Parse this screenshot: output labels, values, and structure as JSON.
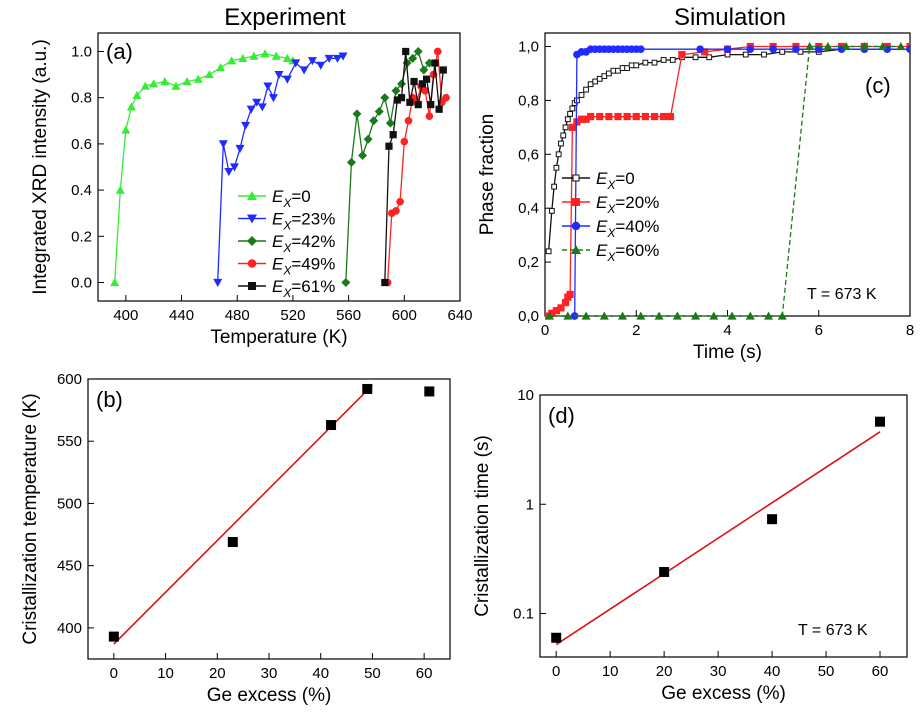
{
  "headers": {
    "left": "Experiment",
    "right": "Simulation"
  },
  "chart_data": [
    {
      "panel_label": "(a)",
      "type": "line",
      "xlabel": "Temperature (K)",
      "ylabel": "Integrated XRD intensity (a.u.)",
      "xlim": [
        380,
        640
      ],
      "ylim": [
        -0.08,
        1.08
      ],
      "xticks": [
        "400",
        "440",
        "480",
        "520",
        "560",
        "600",
        "640"
      ],
      "yticks": [
        "0.0",
        "0.2",
        "0.4",
        "0.6",
        "0.8",
        "1.0"
      ],
      "legend_position": "bottom-center",
      "series": [
        {
          "name": "Ex=0",
          "label_base": "E",
          "label_sub": "X",
          "label_rest": "=0",
          "color": "#33ee33",
          "marker": "triangle-up",
          "x": [
            392,
            396,
            400,
            404,
            408,
            414,
            420,
            428,
            436,
            444,
            452,
            460,
            468,
            476,
            484,
            492,
            500,
            508,
            516,
            520
          ],
          "y": [
            0.0,
            0.4,
            0.66,
            0.76,
            0.81,
            0.85,
            0.86,
            0.87,
            0.85,
            0.87,
            0.88,
            0.9,
            0.93,
            0.96,
            0.97,
            0.98,
            0.99,
            0.98,
            0.97,
            0.96
          ]
        },
        {
          "name": "Ex=23%",
          "label_base": "E",
          "label_sub": "X",
          "label_rest": "=23%",
          "color": "#1f2bff",
          "marker": "triangle-down",
          "x": [
            466,
            470,
            474,
            478,
            482,
            486,
            490,
            494,
            498,
            502,
            506,
            510,
            516,
            522,
            528,
            534,
            540,
            546,
            552,
            556
          ],
          "y": [
            0.0,
            0.6,
            0.48,
            0.5,
            0.58,
            0.68,
            0.75,
            0.78,
            0.76,
            0.85,
            0.8,
            0.9,
            0.88,
            0.95,
            0.92,
            0.96,
            0.94,
            0.97,
            0.97,
            0.98
          ]
        },
        {
          "name": "Ex=42%",
          "label_base": "E",
          "label_sub": "X",
          "label_rest": "=42%",
          "color": "#1a7a1a",
          "marker": "diamond",
          "x": [
            558,
            562,
            566,
            570,
            574,
            578,
            582,
            586,
            590,
            594,
            598,
            602,
            606,
            610,
            614,
            618
          ],
          "y": [
            0.0,
            0.52,
            0.73,
            0.55,
            0.62,
            0.7,
            0.74,
            0.8,
            0.69,
            0.83,
            0.86,
            0.95,
            0.97,
            1.0,
            0.92,
            0.95
          ]
        },
        {
          "name": "Ex=49%",
          "label_base": "E",
          "label_sub": "X",
          "label_rest": "=49%",
          "color": "#ff2222",
          "marker": "circle",
          "x": [
            588,
            591,
            594,
            597,
            600,
            603,
            606,
            609,
            612,
            615,
            618,
            621,
            624,
            627,
            630
          ],
          "y": [
            0.0,
            0.3,
            0.31,
            0.35,
            0.61,
            0.7,
            0.8,
            0.78,
            0.85,
            0.83,
            0.72,
            0.9,
            1.0,
            0.78,
            0.8
          ]
        },
        {
          "name": "Ex=61%",
          "label_base": "E",
          "label_sub": "X",
          "label_rest": "=61%",
          "color": "#111111",
          "marker": "square",
          "x": [
            586,
            589,
            592,
            595,
            598,
            601,
            604,
            607,
            610,
            613,
            616,
            619,
            622,
            625,
            628
          ],
          "y": [
            0.0,
            0.59,
            0.64,
            0.79,
            0.8,
            1.0,
            0.78,
            0.87,
            0.77,
            0.86,
            0.88,
            0.77,
            0.95,
            0.75,
            0.92
          ]
        }
      ]
    },
    {
      "panel_label": "(c)",
      "type": "line",
      "xlabel": "Time (s)",
      "ylabel": "Phase fraction",
      "xlim": [
        0,
        8
      ],
      "ylim": [
        0,
        1.05
      ],
      "xticks": [
        "0",
        "2",
        "4",
        "6",
        "8"
      ],
      "yticks": [
        "0,0",
        "0,2",
        "0,4",
        "0,6",
        "0,8",
        "1,0"
      ],
      "annotation": "T = 673 K",
      "legend_position": "center-left",
      "series": [
        {
          "name": "Ex=0",
          "label_base": "E",
          "label_sub": "X",
          "label_rest": "=0",
          "color": "#111111",
          "marker": "square-open",
          "x": [
            0.08,
            0.15,
            0.2,
            0.25,
            0.3,
            0.35,
            0.4,
            0.45,
            0.5,
            0.55,
            0.6,
            0.65,
            0.7,
            0.8,
            0.9,
            1.0,
            1.1,
            1.2,
            1.3,
            1.4,
            1.5,
            1.6,
            1.7,
            1.8,
            1.9,
            2.0,
            2.2,
            2.4,
            2.6,
            2.8,
            3.0,
            3.3,
            3.6,
            4.0,
            4.4,
            4.8,
            5.2,
            5.6,
            6.0,
            6.5,
            7.0,
            7.5,
            8.0
          ],
          "y": [
            0.24,
            0.39,
            0.48,
            0.55,
            0.6,
            0.64,
            0.67,
            0.7,
            0.73,
            0.75,
            0.77,
            0.79,
            0.8,
            0.82,
            0.84,
            0.86,
            0.87,
            0.88,
            0.89,
            0.9,
            0.91,
            0.91,
            0.92,
            0.92,
            0.93,
            0.93,
            0.94,
            0.94,
            0.95,
            0.95,
            0.96,
            0.96,
            0.96,
            0.97,
            0.97,
            0.97,
            0.98,
            0.98,
            0.98,
            0.99,
            0.99,
            0.99,
            0.99
          ]
        },
        {
          "name": "Ex=20%",
          "label_base": "E",
          "label_sub": "X",
          "label_rest": "=20%",
          "color": "#ff2222",
          "marker": "square",
          "x": [
            0.05,
            0.15,
            0.25,
            0.35,
            0.45,
            0.5,
            0.55,
            0.6,
            0.7,
            0.8,
            0.9,
            1.0,
            1.2,
            1.4,
            1.6,
            1.8,
            2.0,
            2.2,
            2.4,
            2.6,
            2.75,
            3.0,
            3.5,
            4.0,
            4.5,
            5.0,
            5.5,
            6.0,
            6.5,
            7.0,
            7.5,
            8.0
          ],
          "y": [
            0.0,
            0.01,
            0.02,
            0.03,
            0.05,
            0.07,
            0.08,
            0.7,
            0.72,
            0.73,
            0.73,
            0.74,
            0.74,
            0.74,
            0.74,
            0.74,
            0.74,
            0.74,
            0.74,
            0.74,
            0.74,
            0.97,
            0.98,
            0.99,
            1.0,
            1.0,
            1.0,
            1.0,
            1.0,
            1.0,
            1.0,
            1.0
          ]
        },
        {
          "name": "Ex=40%",
          "label_base": "E",
          "label_sub": "X",
          "label_rest": "=40%",
          "color": "#1f2bff",
          "marker": "circle",
          "x": [
            0.65,
            0.7,
            0.8,
            0.9,
            1.0,
            1.1,
            1.2,
            1.3,
            1.4,
            1.5,
            1.6,
            1.7,
            1.8,
            1.9,
            2.0,
            2.1,
            3.4,
            4.0,
            4.5,
            5.0,
            5.5,
            6.0,
            6.5,
            7.0,
            7.5,
            8.0
          ],
          "y": [
            0.0,
            0.97,
            0.98,
            0.98,
            0.99,
            0.99,
            0.99,
            0.99,
            0.99,
            0.99,
            0.99,
            0.99,
            0.99,
            0.99,
            0.99,
            0.99,
            0.99,
            0.99,
            0.99,
            0.99,
            0.99,
            0.99,
            0.99,
            0.99,
            0.99,
            0.99
          ]
        },
        {
          "name": "Ex=60%",
          "label_base": "E",
          "label_sub": "X",
          "label_rest": "=60%",
          "color": "#1a7a1a",
          "marker": "triangle-up",
          "dashed": true,
          "x": [
            0.1,
            0.5,
            0.9,
            1.3,
            1.7,
            2.1,
            2.5,
            2.9,
            3.3,
            3.7,
            4.1,
            4.5,
            4.9,
            5.2,
            5.8,
            6.2,
            6.6,
            7.0,
            7.4,
            7.8
          ],
          "y": [
            0.0,
            0.0,
            0.0,
            0.0,
            0.0,
            0.0,
            0.0,
            0.0,
            0.0,
            0.0,
            0.0,
            0.0,
            0.0,
            0.0,
            1.0,
            1.0,
            1.0,
            1.0,
            1.0,
            1.0
          ]
        }
      ]
    },
    {
      "panel_label": "(b)",
      "type": "scatter",
      "xlabel": "Ge excess (%)",
      "ylabel": "Cristallization temperature (K)",
      "xlim": [
        -5,
        65
      ],
      "ylim": [
        375,
        600
      ],
      "xticks": [
        "0",
        "10",
        "20",
        "30",
        "40",
        "50",
        "60"
      ],
      "yticks": [
        "400",
        "450",
        "500",
        "550",
        "600"
      ],
      "points": {
        "x": [
          0,
          23,
          42,
          49,
          61
        ],
        "y": [
          393,
          469,
          563,
          592,
          590
        ]
      },
      "fit": {
        "color": "#dd1111",
        "x": [
          0,
          50
        ],
        "y": [
          387,
          595
        ]
      }
    },
    {
      "panel_label": "(d)",
      "type": "scatter",
      "xlabel": "Ge excess (%)",
      "ylabel": "Cristallization time (s)",
      "xlim": [
        -3,
        65
      ],
      "ylim": [
        0.04,
        10
      ],
      "yscale": "log",
      "xticks": [
        "0",
        "10",
        "20",
        "30",
        "40",
        "50",
        "60"
      ],
      "yticks": [
        "0.1",
        "1",
        "10"
      ],
      "annotation": "T = 673 K",
      "points": {
        "x": [
          0,
          20,
          40,
          60
        ],
        "y": [
          0.06,
          0.24,
          0.73,
          5.7
        ]
      },
      "fit": {
        "color": "#dd1111",
        "x": [
          0,
          60
        ],
        "y": [
          0.052,
          4.6
        ]
      }
    }
  ]
}
